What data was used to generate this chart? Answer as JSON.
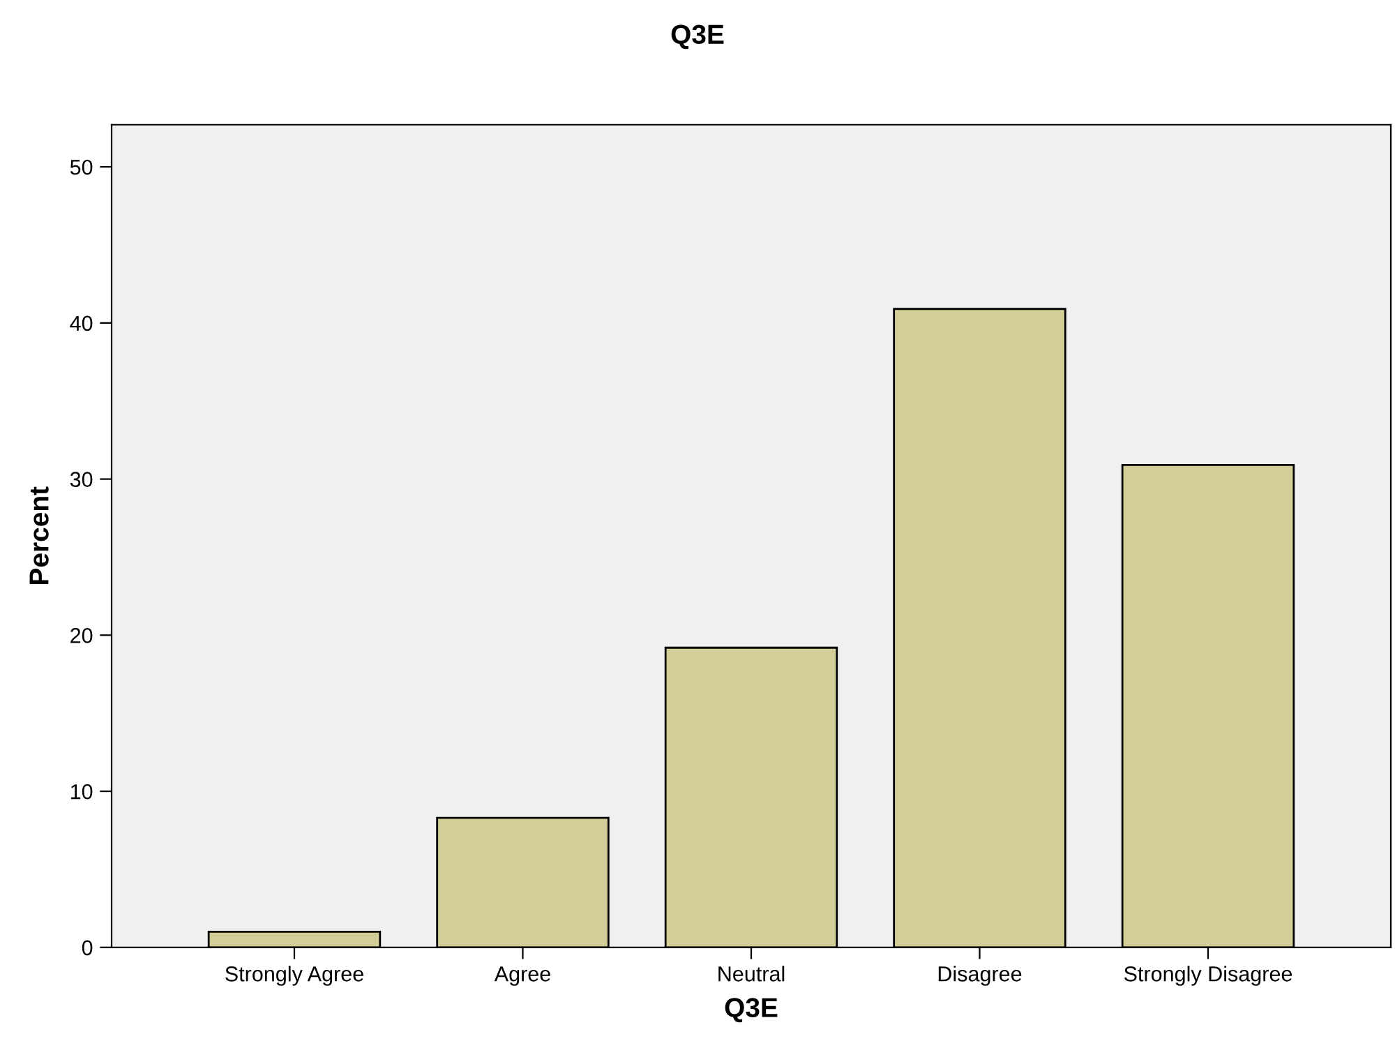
{
  "chart_data": {
    "type": "bar",
    "title": "Q3E",
    "xlabel": "Q3E",
    "ylabel": "Percent",
    "categories": [
      "Strongly Agree",
      "Agree",
      "Neutral",
      "Disagree",
      "Strongly Disagree"
    ],
    "values": [
      1.0,
      8.3,
      19.2,
      40.9,
      30.9
    ],
    "color": "#d3ce97",
    "ylim": [
      0,
      52.7
    ],
    "yticks": [
      0,
      10,
      20,
      30,
      40,
      50
    ],
    "grid": false,
    "legend": false
  }
}
